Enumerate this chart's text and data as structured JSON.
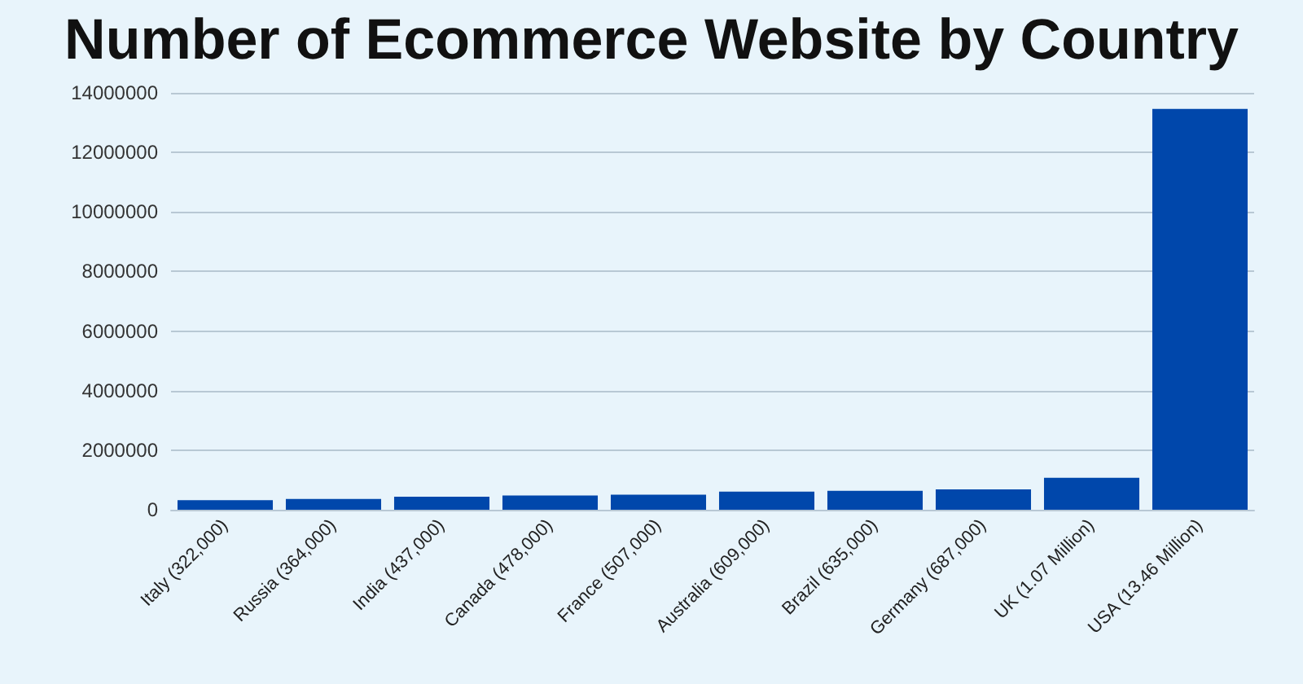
{
  "chart_data": {
    "type": "bar",
    "title": "Number of Ecommerce Website by Country",
    "categories": [
      "Italy (322,000)",
      "Russia (364,000)",
      "India (437,000)",
      "Canada (478,000)",
      "France (507,000)",
      "Australia (609,000)",
      "Brazil (635,000)",
      "Germany (687,000)",
      "UK (1.07 Million)",
      "USA (13.46 Million)"
    ],
    "values": [
      322000,
      364000,
      437000,
      478000,
      507000,
      609000,
      635000,
      687000,
      1070000,
      13460000
    ],
    "color": "#0047ab",
    "ylim": [
      0,
      14000000
    ],
    "yticks": [
      0,
      2000000,
      4000000,
      6000000,
      8000000,
      10000000,
      12000000,
      14000000
    ],
    "grid": "y"
  }
}
